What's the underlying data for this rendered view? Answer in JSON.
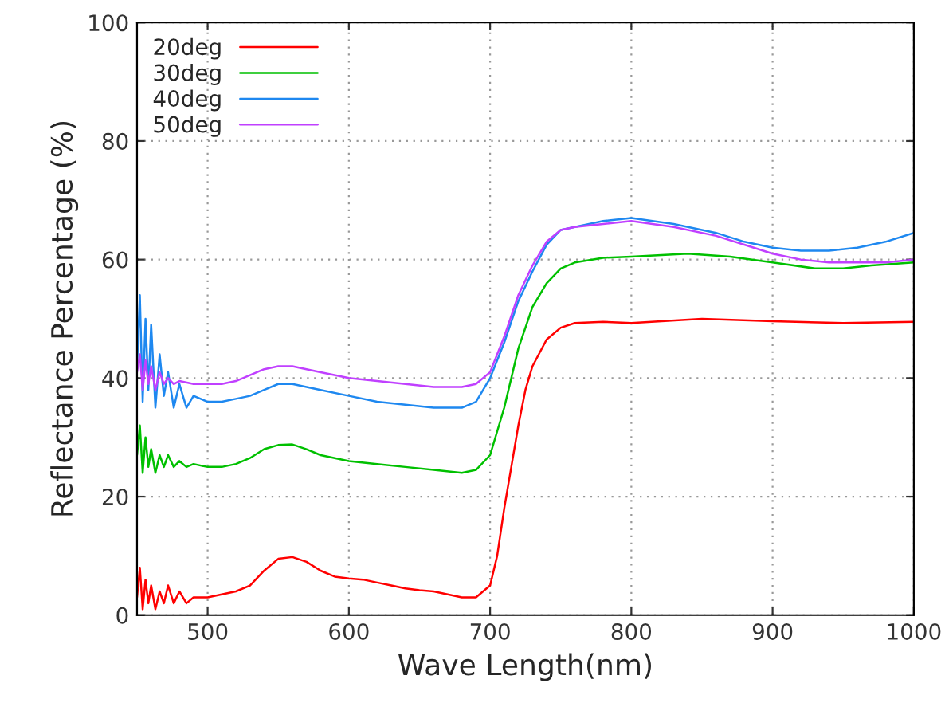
{
  "chart_data": {
    "type": "line",
    "xlabel": "Wave Length(nm)",
    "ylabel": "Reflectance Percentage (%)",
    "xlim": [
      450,
      1000
    ],
    "xticks": [
      500,
      600,
      700,
      800,
      900,
      1000
    ],
    "ylim": [
      0,
      100
    ],
    "yticks": [
      0,
      20,
      40,
      60,
      80,
      100
    ],
    "grid": true,
    "legend": "top left",
    "line_style": "solid",
    "marker": "none",
    "series": [
      {
        "name": "20deg",
        "color": "#ff0000",
        "x": [
          450,
          452,
          454,
          456,
          458,
          460,
          463,
          466,
          469,
          472,
          476,
          480,
          485,
          490,
          500,
          510,
          520,
          530,
          540,
          550,
          560,
          570,
          580,
          590,
          600,
          610,
          620,
          630,
          640,
          650,
          660,
          670,
          680,
          690,
          700,
          705,
          710,
          715,
          720,
          725,
          730,
          740,
          750,
          760,
          780,
          800,
          850,
          900,
          950,
          1000
        ],
        "values": [
          3,
          8,
          1,
          6,
          2,
          5,
          1,
          4,
          2,
          5,
          2,
          4,
          2,
          3,
          3,
          3.5,
          4,
          5,
          7.5,
          9.5,
          9.8,
          9,
          7.5,
          6.5,
          6.2,
          6,
          5.5,
          5,
          4.5,
          4.2,
          4,
          3.5,
          3,
          3,
          5,
          10,
          18,
          25,
          32,
          38,
          42,
          46.5,
          48.5,
          49.3,
          49.5,
          49.3,
          50,
          49.6,
          49.3,
          49.5
        ]
      },
      {
        "name": "30deg",
        "color": "#00c000",
        "x": [
          450,
          452,
          454,
          456,
          458,
          460,
          463,
          466,
          469,
          472,
          476,
          480,
          485,
          490,
          500,
          510,
          520,
          530,
          540,
          550,
          560,
          570,
          580,
          590,
          600,
          620,
          640,
          660,
          680,
          690,
          700,
          710,
          720,
          730,
          740,
          750,
          760,
          780,
          800,
          840,
          870,
          900,
          930,
          950,
          970,
          1000
        ],
        "values": [
          27,
          32,
          24,
          30,
          25,
          28,
          24,
          27,
          25,
          27,
          25,
          26,
          25,
          25.5,
          25,
          25,
          25.5,
          26.5,
          28,
          28.7,
          28.8,
          28,
          27,
          26.5,
          26,
          25.5,
          25,
          24.5,
          24,
          24.5,
          27,
          35,
          45,
          52,
          56,
          58.5,
          59.5,
          60.3,
          60.5,
          61,
          60.5,
          59.5,
          58.5,
          58.5,
          59,
          59.5
        ]
      },
      {
        "name": "40deg",
        "color": "#1e88f0",
        "x": [
          450,
          452,
          454,
          456,
          458,
          460,
          463,
          466,
          469,
          472,
          476,
          480,
          485,
          490,
          500,
          510,
          520,
          530,
          540,
          550,
          560,
          570,
          580,
          600,
          620,
          640,
          660,
          680,
          690,
          700,
          710,
          720,
          730,
          740,
          750,
          760,
          780,
          800,
          830,
          860,
          880,
          900,
          920,
          940,
          960,
          980,
          1000
        ],
        "values": [
          42,
          54,
          36,
          50,
          38,
          49,
          35,
          44,
          37,
          41,
          35,
          39,
          35,
          37,
          36,
          36,
          36.5,
          37,
          38,
          39,
          39,
          38.5,
          38,
          37,
          36,
          35.5,
          35,
          35,
          36,
          40,
          46,
          53,
          58,
          62.5,
          65,
          65.5,
          66.5,
          67,
          66,
          64.5,
          63,
          62,
          61.5,
          61.5,
          62,
          63,
          64.5
        ]
      },
      {
        "name": "50deg",
        "color": "#c040ff",
        "x": [
          450,
          452,
          454,
          456,
          458,
          460,
          463,
          466,
          469,
          472,
          476,
          480,
          490,
          500,
          510,
          520,
          530,
          540,
          550,
          560,
          570,
          580,
          600,
          620,
          640,
          660,
          680,
          690,
          700,
          710,
          720,
          730,
          740,
          750,
          760,
          780,
          800,
          830,
          860,
          880,
          900,
          920,
          940,
          960,
          980,
          1000
        ],
        "values": [
          41,
          44,
          38,
          43,
          39,
          42,
          38,
          41,
          39,
          40,
          39,
          39.5,
          39,
          39,
          39,
          39.5,
          40.5,
          41.5,
          42,
          42,
          41.5,
          41,
          40,
          39.5,
          39,
          38.5,
          38.5,
          39,
          41,
          47,
          54,
          59,
          63,
          65,
          65.5,
          66,
          66.5,
          65.5,
          64,
          62.5,
          61,
          60,
          59.5,
          59.5,
          59.5,
          60
        ]
      }
    ]
  }
}
